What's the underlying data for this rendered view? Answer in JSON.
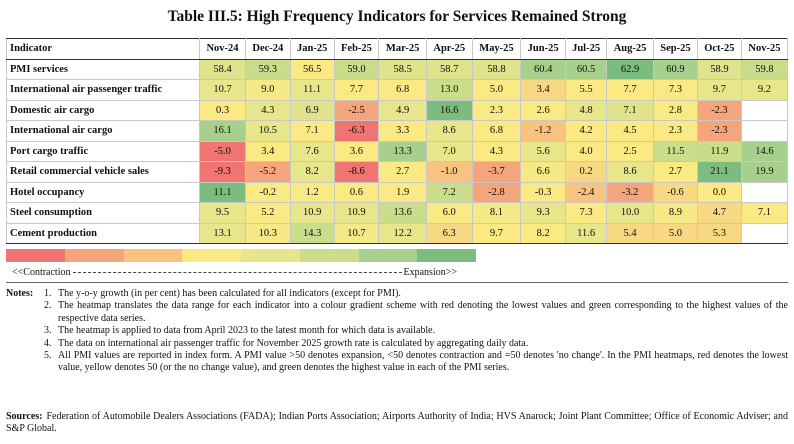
{
  "title": "Table III.5: High Frequency Indicators for Services Remained Strong",
  "table": {
    "header": [
      "Indicator",
      "Nov-24",
      "Dec-24",
      "Jan-25",
      "Feb-25",
      "Mar-25",
      "Apr-25",
      "May-25",
      "Jun-25",
      "Jul-25",
      "Aug-25",
      "Sep-25",
      "Oct-25",
      "Nov-25"
    ],
    "rows": [
      {
        "label": "PMI services",
        "values": [
          "58.4",
          "59.3",
          "56.5",
          "59.0",
          "58.5",
          "58.7",
          "58.8",
          "60.4",
          "60.5",
          "62.9",
          "60.9",
          "58.9",
          "59.8"
        ],
        "colors": [
          "#dfe38c",
          "#c9dd8b",
          "#fbe983",
          "#c9dd8b",
          "#dfe38c",
          "#dfe38c",
          "#dfe38c",
          "#a6d08b",
          "#a6d08b",
          "#7cbd7f",
          "#a6d08b",
          "#dfe38c",
          "#c9dd8b"
        ]
      },
      {
        "label": "International air passenger traffic",
        "values": [
          "10.7",
          "9.0",
          "11.1",
          "7.7",
          "6.8",
          "13.0",
          "5.0",
          "3.4",
          "5.5",
          "7.7",
          "7.3",
          "9.7",
          "9.2"
        ],
        "colors": [
          "#e8e68a",
          "#f6e886",
          "#e8e68a",
          "#fbe983",
          "#fbe983",
          "#c9dd8b",
          "#fbe983",
          "#f9d884",
          "#fbe983",
          "#fbe983",
          "#fbe983",
          "#e8e68a",
          "#e8e68a"
        ]
      },
      {
        "label": "Domestic air cargo",
        "values": [
          "0.3",
          "4.3",
          "6.9",
          "-2.5",
          "4.9",
          "16.6",
          "2.3",
          "2.6",
          "4.8",
          "7.1",
          "2.8",
          "-2.3",
          null
        ],
        "colors": [
          "#fbe983",
          "#e8e68a",
          "#dfe38c",
          "#f5a57b",
          "#e8e68a",
          "#7cbd7f",
          "#fbe983",
          "#fbe983",
          "#e8e68a",
          "#dfe38c",
          "#fbe983",
          "#f5a57b",
          "#ffffff"
        ]
      },
      {
        "label": "International air cargo",
        "values": [
          "16.1",
          "10.5",
          "7.1",
          "-6.3",
          "3.3",
          "8.6",
          "6.8",
          "-1.2",
          "4.2",
          "4.5",
          "2.3",
          "-2.3",
          null
        ],
        "colors": [
          "#a6d08b",
          "#e8e68a",
          "#fbe983",
          "#f07470",
          "#fbe983",
          "#e8e68a",
          "#fbe983",
          "#f9c27f",
          "#fbe983",
          "#fbe983",
          "#fbe983",
          "#f5a57b",
          "#ffffff"
        ]
      },
      {
        "label": "Port cargo traffic",
        "values": [
          "-5.0",
          "3.4",
          "7.6",
          "3.6",
          "13.3",
          "7.0",
          "4.3",
          "5.6",
          "4.0",
          "2.5",
          "11.5",
          "11.9",
          "14.6"
        ],
        "colors": [
          "#f07470",
          "#fbe983",
          "#e8e68a",
          "#fbe983",
          "#a6d08b",
          "#e8e68a",
          "#fbe983",
          "#e8e68a",
          "#fbe983",
          "#fbe983",
          "#c9dd8b",
          "#c9dd8b",
          "#a6d08b"
        ]
      },
      {
        "label": "Retail commercial vehicle sales",
        "values": [
          "-9.3",
          "-5.2",
          "8.2",
          "-8.6",
          "2.7",
          "-1.0",
          "-3.7",
          "6.6",
          "0.2",
          "8.6",
          "2.7",
          "21.1",
          "19.9"
        ],
        "colors": [
          "#f07470",
          "#f5a57b",
          "#e8e68a",
          "#f07470",
          "#fbe983",
          "#f9c27f",
          "#f5a57b",
          "#f6e886",
          "#f9d884",
          "#e8e68a",
          "#fbe983",
          "#7cbd7f",
          "#a6d08b"
        ]
      },
      {
        "label": "Hotel occupancy",
        "values": [
          "11.1",
          "-0.2",
          "1.2",
          "0.6",
          "1.9",
          "7.2",
          "-2.8",
          "-0.3",
          "-2.4",
          "-3.2",
          "-0.6",
          "0.0",
          null
        ],
        "colors": [
          "#7cbd7f",
          "#fbe983",
          "#fbe983",
          "#fbe983",
          "#fbe983",
          "#c9dd8b",
          "#f5a57b",
          "#fbe983",
          "#f9c27f",
          "#f5a57b",
          "#f9d884",
          "#fbe983",
          "#ffffff"
        ]
      },
      {
        "label": "Steel consumption",
        "values": [
          "9.5",
          "5.2",
          "10.9",
          "10.9",
          "13.6",
          "6.0",
          "8.1",
          "9.3",
          "7.3",
          "10.0",
          "8.9",
          "4.7",
          "7.1"
        ],
        "colors": [
          "#e8e68a",
          "#fbe983",
          "#e8e68a",
          "#e8e68a",
          "#c9dd8b",
          "#fbe983",
          "#f6e886",
          "#e8e68a",
          "#fbe983",
          "#e8e68a",
          "#f6e886",
          "#f9d884",
          "#fbe983"
        ]
      },
      {
        "label": "Cement production",
        "values": [
          "13.1",
          "10.3",
          "14.3",
          "10.7",
          "12.2",
          "6.3",
          "9.7",
          "8.2",
          "11.6",
          "5.4",
          "5.0",
          "5.3",
          null
        ],
        "colors": [
          "#e8e68a",
          "#f6e886",
          "#c9dd8b",
          "#f6e886",
          "#e8e68a",
          "#f9d884",
          "#fbe983",
          "#fbe983",
          "#e8e68a",
          "#f9d884",
          "#f9d884",
          "#f9d884",
          "#ffffff"
        ]
      }
    ]
  },
  "scale": {
    "colors": [
      "#f07470",
      "#f5a57b",
      "#f9c27f",
      "#fbe983",
      "#e8e68a",
      "#c9dd8b",
      "#a6d08b",
      "#7cbd7f"
    ],
    "low_label": "<<Contraction",
    "high_label": "Expansion>>"
  },
  "notes": {
    "label": "Notes:",
    "items": [
      {
        "num": "1.",
        "text": "The y-o-y growth (in per cent) has been calculated for all indicators (except for PMI)."
      },
      {
        "num": "2.",
        "text": "The heatmap translates the data range for each indicator into a colour gradient scheme with red denoting the lowest values and green corresponding to the highest values of the respective data series."
      },
      {
        "num": "3.",
        "text": "The heatmap is applied to data from April 2023 to the latest month for which data is available."
      },
      {
        "num": "4.",
        "text": "The data on international air passenger traffic for November 2025 growth rate is calculated by aggregating daily data."
      },
      {
        "num": "5.",
        "text": "All PMI values are reported in index form. A PMI value >50 denotes expansion, <50 denotes contraction and =50 denotes 'no change'. In the PMI heatmaps, red denotes the lowest value, yellow denotes 50 (or the no change value), and green denotes the highest value in each of the PMI series."
      }
    ]
  },
  "sources": {
    "label": "Sources:",
    "text": "Federation of Automobile Dealers Associations (FADA); Indian Ports Association; Airports Authority of India; HVS Anarock; Joint Plant Committee; Office of Economic Adviser; and S&P Global."
  }
}
